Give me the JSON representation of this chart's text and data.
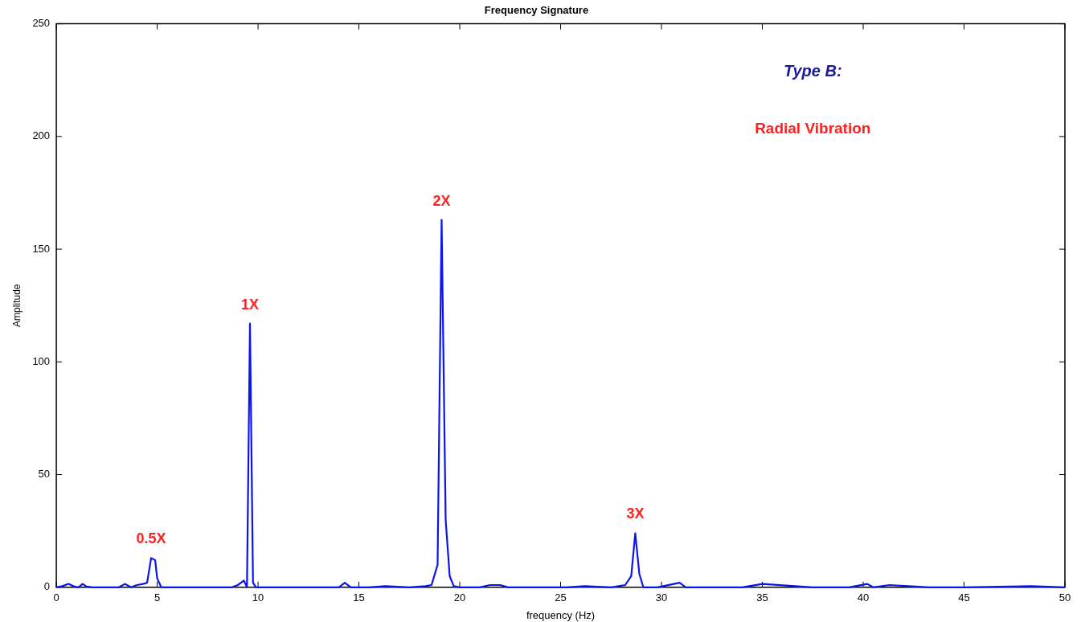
{
  "chart_data": {
    "type": "line",
    "title": "Frequency Signature",
    "xlabel": "frequency (Hz)",
    "ylabel": "Amplitude",
    "xlim": [
      0,
      50
    ],
    "xticks": [
      0,
      5,
      10,
      15,
      20,
      25,
      30,
      35,
      40,
      45,
      50
    ],
    "ylim": [
      0,
      250
    ],
    "yticks": [
      0,
      50,
      100,
      150,
      200,
      250
    ],
    "grid": false,
    "legend": false,
    "marker": "none",
    "line_style": "solid",
    "series": [
      {
        "color": "#0a14f0",
        "x": [
          0,
          0.3,
          0.6,
          0.9,
          1.1,
          1.3,
          1.5,
          1.8,
          3.1,
          3.4,
          3.7,
          4.0,
          4.3,
          4.5,
          4.7,
          4.9,
          5.0,
          5.2,
          5.8,
          6.3,
          7.3,
          8.7,
          9.0,
          9.3,
          9.45,
          9.6,
          9.75,
          9.9,
          10.5,
          11.5,
          12.5,
          13.0,
          14.0,
          14.3,
          14.6,
          15.5,
          16.3,
          17.5,
          18.3,
          18.6,
          18.9,
          19.1,
          19.3,
          19.5,
          19.7,
          20.0,
          21.0,
          21.5,
          22.0,
          22.4,
          23.5,
          25.3,
          26.2,
          27.5,
          28.2,
          28.5,
          28.7,
          28.9,
          29.1,
          29.8,
          30.9,
          31.2,
          32.0,
          34.0,
          35.0,
          37.5,
          39.3,
          40.2,
          40.5,
          41.3,
          43.3,
          45.0,
          48.3,
          50.0
        ],
        "values": [
          0,
          0.5,
          1.5,
          0.3,
          0,
          1.5,
          0.3,
          0,
          0,
          1.5,
          0,
          1,
          1.5,
          2,
          13,
          12,
          4,
          0,
          0,
          0,
          0,
          0,
          1,
          3,
          0,
          117,
          2,
          0,
          0,
          0,
          0,
          0,
          0,
          2,
          0,
          0,
          0.5,
          0,
          0.5,
          1,
          10,
          163,
          30,
          5,
          0.5,
          0,
          0,
          1,
          1,
          0,
          0,
          0,
          0.5,
          0,
          1,
          5,
          24,
          6,
          0,
          0,
          2,
          0,
          0,
          0,
          1.5,
          0,
          0,
          1.5,
          0,
          1,
          0,
          0,
          0.5,
          0
        ]
      }
    ],
    "annotations": [
      "Type B:",
      "Radial Vibration",
      {
        "text": "0.5X",
        "x": 4.7,
        "y": 13
      },
      {
        "text": "1X",
        "x": 9.6,
        "y": 117
      },
      {
        "text": "2X",
        "x": 19.1,
        "y": 163
      },
      {
        "text": "3X",
        "x": 28.7,
        "y": 24
      }
    ]
  }
}
